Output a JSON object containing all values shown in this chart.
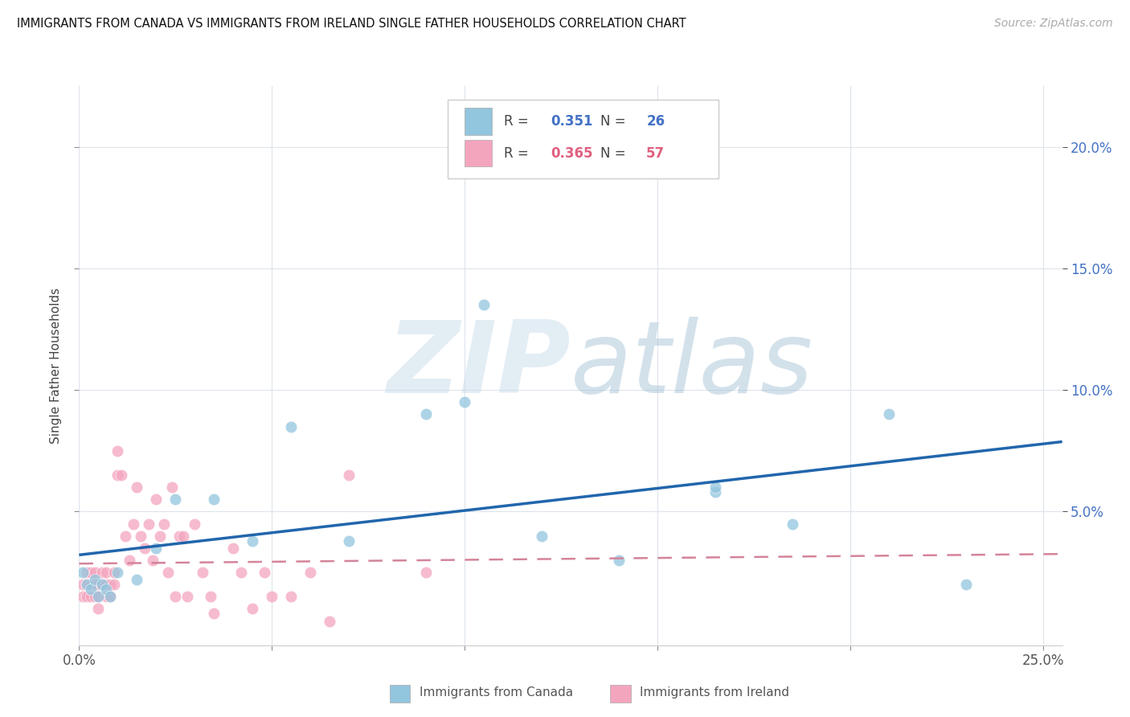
{
  "title": "IMMIGRANTS FROM CANADA VS IMMIGRANTS FROM IRELAND SINGLE FATHER HOUSEHOLDS CORRELATION CHART",
  "source": "Source: ZipAtlas.com",
  "ylabel": "Single Father Households",
  "xlim": [
    0.0,
    0.255
  ],
  "ylim": [
    -0.005,
    0.225
  ],
  "xticks": [
    0.0,
    0.05,
    0.1,
    0.15,
    0.2,
    0.25
  ],
  "yticks": [
    0.05,
    0.1,
    0.15,
    0.2
  ],
  "xtick_labels_show": [
    "0.0%",
    "",
    "",
    "",
    "",
    "25.0%"
  ],
  "yticklabels_right": [
    "5.0%",
    "10.0%",
    "15.0%",
    "20.0%"
  ],
  "canada_color": "#92c5de",
  "ireland_color": "#f4a5be",
  "canada_line_color": "#2166ac",
  "ireland_line_color": "#d4849a",
  "canada_R": "0.351",
  "canada_N": "26",
  "ireland_R": "0.365",
  "ireland_N": "57",
  "watermark_zip": "ZIP",
  "watermark_atlas": "atlas",
  "watermark_color": "#ccdde8",
  "background_color": "#ffffff",
  "grid_color": "#dde3ec",
  "canada_x": [
    0.001,
    0.002,
    0.003,
    0.004,
    0.005,
    0.006,
    0.007,
    0.008,
    0.01,
    0.015,
    0.02,
    0.025,
    0.035,
    0.045,
    0.055,
    0.07,
    0.09,
    0.105,
    0.12,
    0.14,
    0.165,
    0.185,
    0.21,
    0.23,
    0.1,
    0.165
  ],
  "canada_y": [
    0.025,
    0.02,
    0.018,
    0.022,
    0.015,
    0.02,
    0.018,
    0.015,
    0.025,
    0.022,
    0.035,
    0.055,
    0.055,
    0.038,
    0.085,
    0.038,
    0.09,
    0.135,
    0.04,
    0.03,
    0.058,
    0.045,
    0.09,
    0.02,
    0.095,
    0.06
  ],
  "ireland_x": [
    0.001,
    0.001,
    0.002,
    0.002,
    0.002,
    0.003,
    0.003,
    0.003,
    0.004,
    0.004,
    0.004,
    0.005,
    0.005,
    0.005,
    0.006,
    0.006,
    0.007,
    0.007,
    0.007,
    0.008,
    0.008,
    0.009,
    0.009,
    0.01,
    0.01,
    0.011,
    0.012,
    0.013,
    0.014,
    0.015,
    0.016,
    0.017,
    0.018,
    0.019,
    0.02,
    0.021,
    0.022,
    0.023,
    0.024,
    0.025,
    0.026,
    0.027,
    0.028,
    0.03,
    0.032,
    0.034,
    0.035,
    0.04,
    0.042,
    0.045,
    0.048,
    0.05,
    0.055,
    0.06,
    0.065,
    0.07,
    0.09
  ],
  "ireland_y": [
    0.015,
    0.02,
    0.015,
    0.02,
    0.025,
    0.02,
    0.015,
    0.025,
    0.015,
    0.02,
    0.025,
    0.02,
    0.015,
    0.01,
    0.025,
    0.02,
    0.015,
    0.02,
    0.025,
    0.02,
    0.015,
    0.02,
    0.025,
    0.075,
    0.065,
    0.065,
    0.04,
    0.03,
    0.045,
    0.06,
    0.04,
    0.035,
    0.045,
    0.03,
    0.055,
    0.04,
    0.045,
    0.025,
    0.06,
    0.015,
    0.04,
    0.04,
    0.015,
    0.045,
    0.025,
    0.015,
    0.008,
    0.035,
    0.025,
    0.01,
    0.025,
    0.015,
    0.015,
    0.025,
    0.005,
    0.065,
    0.025
  ]
}
